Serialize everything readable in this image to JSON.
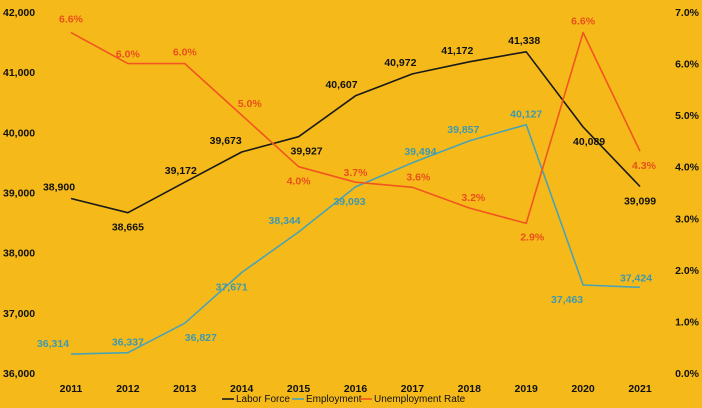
{
  "chart_data": {
    "type": "line",
    "categories": [
      "2011",
      "2012",
      "2013",
      "2014",
      "2015",
      "2016",
      "2017",
      "2018",
      "2019",
      "2020",
      "2021"
    ],
    "y_left": {
      "ylim": [
        36000,
        42000
      ],
      "ticks": [
        36000,
        37000,
        38000,
        39000,
        40000,
        41000,
        42000
      ],
      "tick_labels": [
        "36,000",
        "37,000",
        "38,000",
        "39,000",
        "40,000",
        "41,000",
        "42,000"
      ]
    },
    "y_right": {
      "ylim": [
        0.0,
        7.0
      ],
      "ticks": [
        0,
        1,
        2,
        3,
        4,
        5,
        6,
        7
      ],
      "tick_labels": [
        "0.0%",
        "1.0%",
        "2.0%",
        "3.0%",
        "4.0%",
        "5.0%",
        "6.0%",
        "7.0%"
      ]
    },
    "series": [
      {
        "name": "Labor Force",
        "axis": "left",
        "color": "#1A1A1A",
        "label_color": "#111111",
        "values": [
          38900,
          38665,
          39172,
          39673,
          39927,
          40607,
          40972,
          41172,
          41338,
          40089,
          39099
        ],
        "labels": [
          "38,900",
          "38,665",
          "39,172",
          "39,673",
          "39,927",
          "40,607",
          "40,972",
          "41,172",
          "41,338",
          "40,089",
          "39,099"
        ]
      },
      {
        "name": "Employment",
        "axis": "left",
        "color": "#4AA3B5",
        "label_color": "#3F98AE",
        "values": [
          36314,
          36337,
          36827,
          37671,
          38344,
          39093,
          39494,
          39857,
          40127,
          37463,
          37424
        ],
        "labels": [
          "36,314",
          "36,337",
          "36,827",
          "37,671",
          "38,344",
          "39,093",
          "39,494",
          "39,857",
          "40,127",
          "37,463",
          "37,424"
        ]
      },
      {
        "name": "Unemployment Rate",
        "axis": "right",
        "color": "#F0561E",
        "label_color": "#E8501A",
        "values": [
          6.6,
          6.0,
          6.0,
          5.0,
          4.0,
          3.7,
          3.6,
          3.2,
          2.9,
          6.6,
          4.3
        ],
        "labels": [
          "6.6%",
          "6.0%",
          "6.0%",
          "5.0%",
          "4.0%",
          "3.7%",
          "3.6%",
          "3.2%",
          "2.9%",
          "6.6%",
          "4.3%"
        ]
      }
    ],
    "legend": [
      "Labor Force",
      "Employment",
      "Unemployment Rate"
    ],
    "legend_position": "bottom",
    "grid": false,
    "title": "",
    "xlabel": "",
    "ylabel": ""
  }
}
